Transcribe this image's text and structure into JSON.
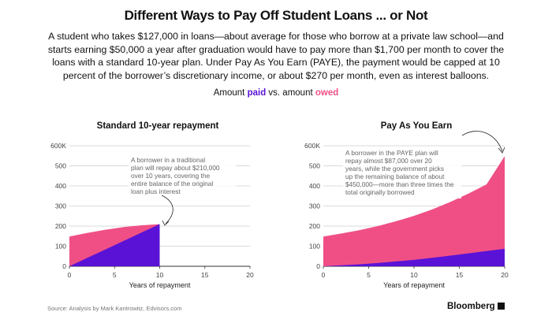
{
  "title": "Different Ways to Pay Off Student Loans ... or Not",
  "subtitle": "A student who takes $127,000 in loans—about average for those who borrow at a private law school—and starts earning $50,000 a year after graduation would have to pay more than $1,700 per month to cover the loans with a standard 10-year plan. Under Pay As You Earn (PAYE), the payment would be capped at 10 percent of the borrower’s discretionary income, or about $270 per month, even as interest balloons.",
  "legend": {
    "prefix": "Amount ",
    "paid": "paid",
    "middle": " vs. amount ",
    "owed": "owed"
  },
  "colors": {
    "paid": "#5a12d6",
    "owed": "#f04f86"
  },
  "source": "Source: Analysis by Mark Kantrowitz, Edvisors.com",
  "brand": "Bloomberg",
  "chart_data": [
    {
      "type": "area",
      "title": "Standard 10-year repayment",
      "xlabel": "Years of repayment",
      "ylabel": "",
      "xlim": [
        0,
        20
      ],
      "ylim": [
        0,
        600
      ],
      "x_ticks": [
        "0",
        "5",
        "10",
        "15",
        "20"
      ],
      "y_ticks": [
        "0",
        "100",
        "200",
        "300",
        "400",
        "500",
        "600K"
      ],
      "grid": true,
      "x": [
        0,
        2,
        4,
        6,
        8,
        10
      ],
      "series": [
        {
          "name": "owed",
          "values": [
            148,
            166,
            182,
            195,
            204,
            210
          ]
        },
        {
          "name": "paid",
          "values": [
            0,
            42,
            84,
            126,
            168,
            210
          ]
        }
      ],
      "annotation": "A borrower in a traditional plan will repay about $210,000 over 10 years, covering the entire balance of the original loan plus interest"
    },
    {
      "type": "area",
      "title": "Pay As You Earn",
      "xlabel": "Years of repayment",
      "ylabel": "",
      "xlim": [
        0,
        20
      ],
      "ylim": [
        0,
        600
      ],
      "x_ticks": [
        "0",
        "5",
        "10",
        "15",
        "20"
      ],
      "y_ticks": [
        "0",
        "100",
        "200",
        "300",
        "400",
        "500",
        "600K"
      ],
      "grid": true,
      "x": [
        0,
        2,
        4,
        6,
        8,
        10,
        12,
        14,
        16,
        18,
        20
      ],
      "series": [
        {
          "name": "owed",
          "values": [
            148,
            163,
            180,
            200,
            224,
            251,
            283,
            320,
            362,
            408,
            548
          ]
        },
        {
          "name": "paid",
          "values": [
            0,
            5,
            10,
            16,
            24,
            32,
            42,
            53,
            64,
            76,
            87
          ]
        }
      ],
      "annotation": "A borrower in the PAYE plan will repay almost $87,000 over 20 years, while the government picks up the remaining balance of about $450,000—more than three times the total originally borrowed"
    }
  ]
}
